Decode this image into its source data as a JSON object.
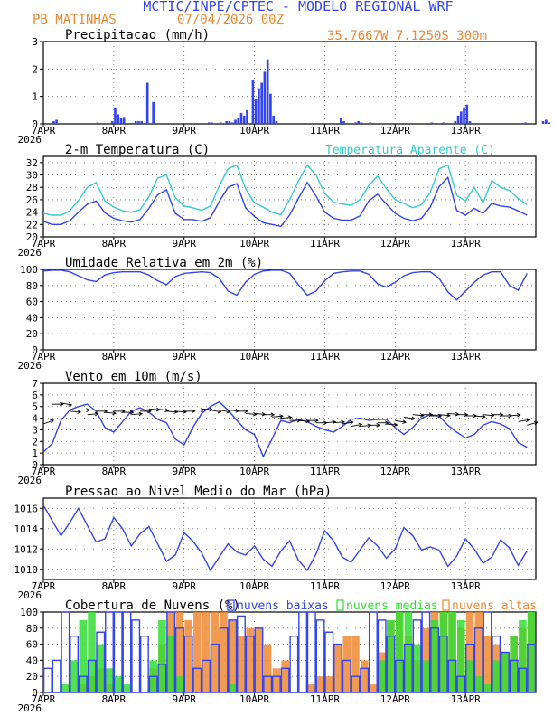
{
  "header": {
    "title": "MCTIC/INPE/CPTEC - MODELO REGIONAL WRF",
    "location": "PB MATINHAS",
    "run": "07/04/2026 00Z",
    "coords": "35.7667W 7.1250S 300m"
  },
  "colors": {
    "title": "#3344ee",
    "orange": "#ee8833",
    "blue": "#3344ee",
    "cyan": "#33cccc",
    "green": "#33dd33",
    "frame": "#000000",
    "grid": "#666666"
  },
  "x_axis": {
    "ticks": [
      "7APR",
      "8APR",
      "9APR",
      "10APR",
      "11APR",
      "12APR",
      "13APR"
    ],
    "year": "2026"
  },
  "chart_data": [
    {
      "type": "bar",
      "title": "Precipitacao (mm/h)",
      "ylim": [
        0,
        3
      ],
      "yticks": [
        0,
        1,
        2,
        3
      ],
      "step_hours": 1,
      "values": [
        0,
        0,
        0,
        0.1,
        0.15,
        0,
        0,
        0,
        0,
        0,
        0,
        0,
        0,
        0,
        0,
        0,
        0,
        0,
        0.05,
        0,
        0,
        0,
        0,
        0.1,
        0.6,
        0.35,
        0.2,
        0.25,
        0,
        0,
        0,
        0.1,
        0.1,
        0.1,
        0,
        1.5,
        0,
        0.8,
        0,
        0,
        0,
        0,
        0,
        0,
        0,
        0,
        0,
        0,
        0,
        0,
        0,
        0,
        0,
        0,
        0,
        0,
        0.05,
        0.05,
        0,
        0,
        0.05,
        0,
        0.1,
        0.1,
        0.05,
        0.15,
        0.2,
        0.4,
        0.3,
        0.5,
        0,
        1.6,
        0.9,
        1.3,
        1.5,
        1.9,
        2.35,
        1.1,
        0.3,
        0.1,
        0,
        0,
        0,
        0,
        0,
        0,
        0,
        0,
        0,
        0,
        0,
        0,
        0,
        0,
        0,
        0,
        0,
        0,
        0,
        0,
        0,
        0.2,
        0.1,
        0,
        0,
        0,
        0.05,
        0.1,
        0.05,
        0,
        0,
        0.05,
        0,
        0,
        0,
        0,
        0,
        0,
        0,
        0,
        0,
        0,
        0,
        0,
        0,
        0,
        0,
        0,
        0,
        0,
        0,
        0,
        0.05,
        0,
        0,
        0,
        0.05,
        0,
        0,
        0,
        0.1,
        0.3,
        0.45,
        0.6,
        0.7,
        0.1,
        0,
        0,
        0,
        0,
        0,
        0,
        0,
        0,
        0,
        0,
        0,
        0,
        0,
        0,
        0,
        0,
        0,
        0,
        0.05,
        0,
        0,
        0,
        0,
        0,
        0.1,
        0.15,
        0.05,
        0,
        0,
        0,
        0,
        0.65,
        0.65,
        0,
        0,
        0,
        0,
        0.1,
        0.2,
        0.3,
        0.4,
        0.25,
        0.6,
        0.15,
        0.2,
        0.05,
        0,
        0,
        0,
        0,
        0,
        0,
        0,
        0,
        0,
        0,
        0,
        0,
        0,
        0,
        0.05,
        0.1,
        0.3,
        1.9,
        1.6,
        1.3,
        0.9,
        0.6,
        0.3,
        0,
        0,
        0,
        0,
        0,
        0,
        0,
        0,
        0,
        0,
        0,
        0,
        0,
        0,
        0.2,
        0.9,
        0,
        0,
        0,
        0.05,
        0.1,
        0.2,
        0.6,
        0.7,
        0.3,
        0.2,
        0.3,
        0.2,
        0.1,
        0.05,
        0.1,
        0.05,
        0.1,
        0.2
      ]
    },
    {
      "type": "line",
      "title": "2-m Temperatura (C)",
      "ylim": [
        20,
        33
      ],
      "yticks": [
        20,
        22,
        24,
        26,
        28,
        30,
        32
      ],
      "step_hours": 3,
      "series": [
        {
          "name": "2-m Temperatura (C)",
          "color": "#3344ee",
          "values": [
            22.5,
            22,
            22,
            22.6,
            24,
            25.3,
            25.8,
            23.9,
            23,
            22.6,
            22.4,
            22.8,
            24.6,
            26.8,
            27.6,
            23.8,
            22.8,
            22.8,
            22.5,
            23.1,
            25.7,
            28,
            28.6,
            24.7,
            23.3,
            22.3,
            22,
            21.7,
            23.5,
            26.2,
            28.8,
            26.6,
            24,
            23,
            22.7,
            22.7,
            23.4,
            25.8,
            26.9,
            25.3,
            23.8,
            23,
            22.6,
            23,
            24.8,
            28.1,
            29.6,
            24.3,
            23.5,
            24.6,
            23.8,
            25.4,
            25,
            24.8,
            24.2,
            23.5
          ]
        },
        {
          "name": "Temperatura Aparente (C)",
          "color": "#33cccc",
          "values": [
            23.8,
            23.5,
            23.5,
            24.2,
            25.9,
            28,
            28.8,
            25.8,
            24.8,
            24.2,
            24,
            24.4,
            26.5,
            29.5,
            30,
            26.3,
            25,
            24.7,
            24.3,
            25,
            28.2,
            31,
            31.6,
            27.8,
            25.5,
            24.8,
            24,
            23.6,
            26,
            29,
            31.6,
            30,
            27,
            25.6,
            25.3,
            25.1,
            26,
            28.3,
            29.8,
            27.8,
            26,
            25.4,
            24.7,
            25.2,
            27.2,
            31,
            31.6,
            26.7,
            25.8,
            28,
            25.5,
            29.1,
            28,
            27.5,
            26.2,
            25.2
          ]
        }
      ]
    },
    {
      "type": "line",
      "title": "Umidade Relativa em 2m (%)",
      "ylim": [
        0,
        100
      ],
      "yticks": [
        0,
        20,
        40,
        60,
        80,
        100
      ],
      "step_hours": 3,
      "series": [
        {
          "color": "#3344ee",
          "values": [
            98,
            99,
            99,
            97,
            92,
            87,
            85,
            93,
            96,
            97,
            97,
            97,
            93,
            86,
            81,
            91,
            95,
            96,
            97,
            96,
            89,
            73,
            68,
            84,
            94,
            98,
            99,
            99,
            95,
            81,
            68,
            73,
            86,
            95,
            97,
            98,
            98,
            94,
            82,
            78,
            84,
            92,
            96,
            97,
            97,
            89,
            72,
            62,
            73,
            84,
            93,
            97,
            97,
            80,
            74,
            95
          ]
        }
      ]
    },
    {
      "type": "line",
      "title": "Vento em 10m (m/s)",
      "ylim": [
        0,
        7
      ],
      "yticks": [
        0,
        1,
        2,
        3,
        4,
        5,
        6,
        7
      ],
      "step_hours": 3,
      "series": [
        {
          "color": "#3344ee",
          "values": [
            1.1,
            1.8,
            3.8,
            4.7,
            5.0,
            5.2,
            4.6,
            3.2,
            2.8,
            3.7,
            4.6,
            4.9,
            4.5,
            3.9,
            3.6,
            2.2,
            1.7,
            3.2,
            4.4,
            5.0,
            5.4,
            4.7,
            3.8,
            3.0,
            2.6,
            0.7,
            2.2,
            3.8,
            3.6,
            3.9,
            3.7,
            3.3,
            3.0,
            2.8,
            3.3,
            3.9,
            4.0,
            3.8,
            3.9,
            3.9,
            3.2,
            2.6,
            3.2,
            4.0,
            4.3,
            4.2,
            3.4,
            2.8,
            2.3,
            2.6,
            3.4,
            3.7,
            3.5,
            3.1,
            1.9,
            1.5
          ]
        }
      ],
      "wind_barbs": {
        "anchor_values": [
          3.5,
          5.2,
          5.3,
          4.6,
          4.7,
          4.3,
          4.6,
          4.5,
          4.6,
          4.5,
          4.3,
          4.6,
          4.8,
          4.8,
          4.6,
          4.6,
          4.6,
          4.7,
          4.8,
          4.7,
          4.7,
          4.7,
          4.6,
          4.4,
          4.4,
          4.3,
          4.1,
          4.0,
          3.8,
          3.8,
          3.8,
          3.6,
          3.6,
          3.6,
          3.5,
          3.3,
          3.3,
          3.4,
          3.6,
          3.5,
          3.8,
          4.1,
          4.3,
          4.3,
          4.2,
          4.3,
          4.4,
          4.3,
          4.2,
          4.2,
          4.3,
          4.3,
          4.2,
          4.2,
          3.7,
          3.4
        ],
        "direction_deg": [
          70,
          90,
          100,
          95,
          90,
          85,
          90,
          95,
          90,
          90,
          85,
          90,
          95,
          100,
          95,
          95,
          90,
          90,
          95,
          100,
          100,
          95,
          90,
          95,
          95,
          90,
          85,
          85,
          90,
          95,
          90,
          90,
          85,
          85,
          80,
          80,
          85,
          90,
          90,
          95,
          100,
          100,
          95,
          90,
          90,
          95,
          95,
          90,
          90,
          95,
          95,
          90,
          90,
          85,
          80,
          75
        ]
      }
    },
    {
      "type": "line",
      "title": "Pressao ao Nivel Medio do Mar (hPa)",
      "ylim": [
        1009,
        1017
      ],
      "yticks": [
        1010,
        1012,
        1014,
        1016
      ],
      "step_hours": 3,
      "series": [
        {
          "color": "#3344ee",
          "values": [
            1016.3,
            1014.8,
            1013.3,
            1014.6,
            1016.0,
            1014.3,
            1012.7,
            1013.0,
            1015.1,
            1014.0,
            1012.3,
            1013.5,
            1014.2,
            1012.5,
            1010.8,
            1011.4,
            1013.6,
            1012.8,
            1011.6,
            1009.9,
            1011.2,
            1012.5,
            1011.7,
            1011.4,
            1012.3,
            1011.0,
            1010.3,
            1011.8,
            1012.8,
            1010.9,
            1009.9,
            1011.5,
            1013.8,
            1012.8,
            1011.2,
            1010.7,
            1011.9,
            1013.1,
            1012.3,
            1011.1,
            1012.0,
            1014.1,
            1013.3,
            1011.9,
            1012.2,
            1011.9,
            1010.3,
            1011.3,
            1013.0,
            1012.0,
            1010.6,
            1011.2,
            1012.9,
            1012.1,
            1010.4,
            1011.8
          ]
        }
      ]
    },
    {
      "type": "bar",
      "title": "Cobertura de Nuvens (%)",
      "ylim": [
        0,
        100
      ],
      "yticks": [
        0,
        20,
        40,
        60,
        80,
        100
      ],
      "legend_position": "top",
      "step_hours": 3,
      "series": [
        {
          "name": "nuvens baixas",
          "color": "#3344ee",
          "values": [
            30,
            40,
            100,
            70,
            20,
            40,
            75,
            100,
            100,
            100,
            90,
            70,
            20,
            35,
            100,
            80,
            70,
            30,
            40,
            60,
            80,
            90,
            95,
            70,
            80,
            20,
            20,
            30,
            70,
            100,
            100,
            90,
            75,
            60,
            40,
            20,
            30,
            100,
            90,
            70,
            40,
            60,
            90,
            100,
            80,
            70,
            40,
            20,
            60,
            80,
            100,
            70,
            50,
            40,
            30,
            60
          ]
        },
        {
          "name": "nuvens medias",
          "color": "#33dd33",
          "values": [
            0,
            0,
            10,
            40,
            90,
            100,
            60,
            30,
            20,
            10,
            0,
            0,
            40,
            90,
            70,
            20,
            0,
            0,
            0,
            0,
            0,
            10,
            0,
            0,
            0,
            0,
            0,
            0,
            0,
            0,
            0,
            0,
            0,
            0,
            0,
            0,
            0,
            0,
            40,
            90,
            100,
            100,
            60,
            40,
            90,
            100,
            100,
            90,
            40,
            20,
            10,
            40,
            50,
            70,
            90,
            100
          ]
        },
        {
          "name": "nuvens altas",
          "color": "#ee8833",
          "values": [
            0,
            0,
            0,
            0,
            10,
            20,
            30,
            10,
            0,
            0,
            0,
            0,
            30,
            60,
            100,
            100,
            90,
            100,
            100,
            100,
            100,
            90,
            70,
            80,
            80,
            60,
            30,
            40,
            0,
            0,
            10,
            20,
            20,
            60,
            70,
            70,
            40,
            10,
            50,
            90,
            100,
            70,
            40,
            80,
            100,
            100,
            100,
            80,
            100,
            100,
            70,
            60,
            50,
            70,
            80,
            100
          ]
        }
      ]
    }
  ]
}
